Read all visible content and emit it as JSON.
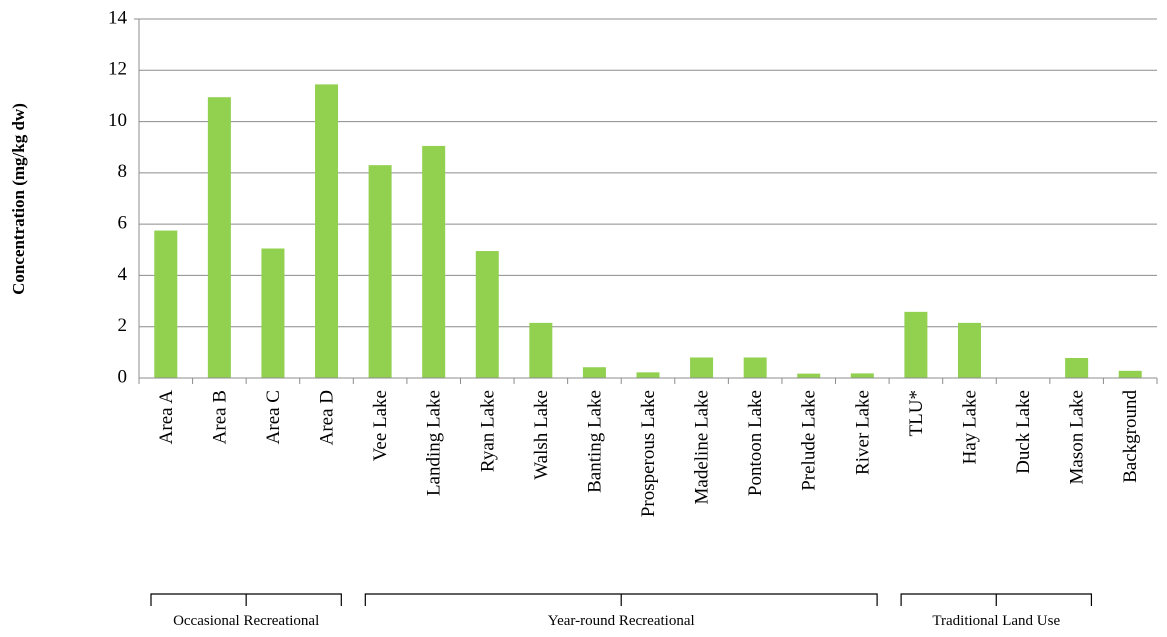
{
  "chart_data": {
    "type": "bar",
    "ylabel": "Concentration (mg/kg dw)",
    "ylim": [
      0,
      14
    ],
    "yticks": [
      0,
      2,
      4,
      6,
      8,
      10,
      12,
      14
    ],
    "grid": true,
    "bar_color": "#92d050",
    "categories": [
      "Area A",
      "Area B",
      "Area C",
      "Area D",
      "Vee Lake",
      "Landing Lake",
      "Ryan Lake",
      "Walsh Lake",
      "Banting Lake",
      "Prosperous Lake",
      "Madeline Lake",
      "Pontoon Lake",
      "Prelude Lake",
      "River Lake",
      "TLU*",
      "Hay Lake",
      "Duck Lake",
      "Mason Lake",
      "Background"
    ],
    "values": [
      5.75,
      10.95,
      5.05,
      11.45,
      8.3,
      9.05,
      4.95,
      2.15,
      0.42,
      0.22,
      0.8,
      0.8,
      0.17,
      0.18,
      2.58,
      2.15,
      0,
      0.78,
      0.28
    ],
    "groups": [
      {
        "label": "Occasional Recreational",
        "start": 0,
        "end": 3
      },
      {
        "label": "Year-round Recreational",
        "start": 4,
        "end": 13
      },
      {
        "label": "Traditional Land Use",
        "start": 14,
        "end": 17
      }
    ]
  }
}
